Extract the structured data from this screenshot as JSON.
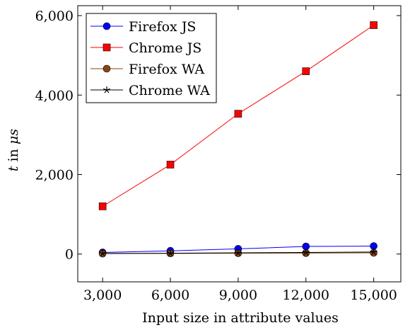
{
  "chart_data": {
    "type": "line",
    "xlabel": "Input size in attribute values",
    "ylabel_var": "t",
    "ylabel_text": " in ",
    "ylabel_unit": "μs",
    "x": [
      3000,
      6000,
      9000,
      12000,
      15000
    ],
    "x_tick_labels": [
      "3,000",
      "6,000",
      "9,000",
      "12,000",
      "15,000"
    ],
    "xlim": [
      1900,
      16200
    ],
    "y_ticks": [
      0,
      2000,
      4000,
      6000
    ],
    "y_tick_labels": [
      "0",
      "2,000",
      "4,000",
      "6,000"
    ],
    "ylim": [
      -700,
      6250
    ],
    "grid": false,
    "legend_position": "top-left",
    "series": [
      {
        "name": "Firefox JS",
        "values": [
          40,
          80,
          130,
          190,
          200
        ],
        "color": "#0000ff",
        "marker": "circle"
      },
      {
        "name": "Chrome JS",
        "values": [
          1200,
          2250,
          3530,
          4600,
          5760
        ],
        "color": "#ff0000",
        "marker": "square"
      },
      {
        "name": "Firefox WA",
        "values": [
          10,
          15,
          20,
          25,
          30
        ],
        "color": "#8b4513",
        "marker": "circle"
      },
      {
        "name": "Chrome WA",
        "values": [
          15,
          20,
          30,
          40,
          50
        ],
        "color": "#000000",
        "marker": "star"
      }
    ]
  }
}
